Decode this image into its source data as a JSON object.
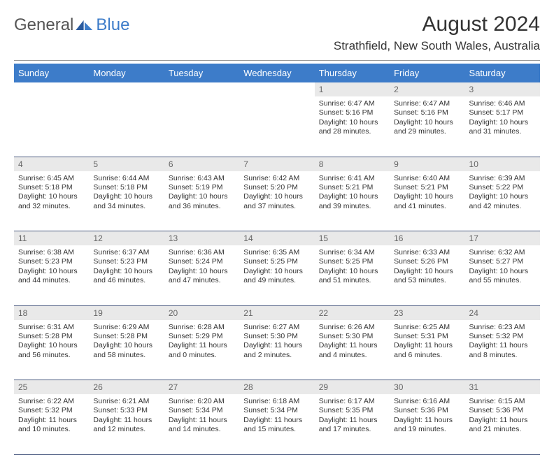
{
  "logo": {
    "text1": "General",
    "text2": "Blue",
    "color1": "#555555",
    "color2": "#3d7cc9"
  },
  "title": "August 2024",
  "subtitle": "Strathfield, New South Wales, Australia",
  "header_bg": "#3d7cc9",
  "daynum_bg": "#e9e9e9",
  "border_color": "#4a5a80",
  "columns": [
    "Sunday",
    "Monday",
    "Tuesday",
    "Wednesday",
    "Thursday",
    "Friday",
    "Saturday"
  ],
  "weeks": [
    {
      "nums": [
        "",
        "",
        "",
        "",
        "1",
        "2",
        "3"
      ],
      "cells": [
        null,
        null,
        null,
        null,
        {
          "sunrise": "6:47 AM",
          "sunset": "5:16 PM",
          "dlh": 10,
          "dlm": 28
        },
        {
          "sunrise": "6:47 AM",
          "sunset": "5:16 PM",
          "dlh": 10,
          "dlm": 29
        },
        {
          "sunrise": "6:46 AM",
          "sunset": "5:17 PM",
          "dlh": 10,
          "dlm": 31
        }
      ]
    },
    {
      "nums": [
        "4",
        "5",
        "6",
        "7",
        "8",
        "9",
        "10"
      ],
      "cells": [
        {
          "sunrise": "6:45 AM",
          "sunset": "5:18 PM",
          "dlh": 10,
          "dlm": 32
        },
        {
          "sunrise": "6:44 AM",
          "sunset": "5:18 PM",
          "dlh": 10,
          "dlm": 34
        },
        {
          "sunrise": "6:43 AM",
          "sunset": "5:19 PM",
          "dlh": 10,
          "dlm": 36
        },
        {
          "sunrise": "6:42 AM",
          "sunset": "5:20 PM",
          "dlh": 10,
          "dlm": 37
        },
        {
          "sunrise": "6:41 AM",
          "sunset": "5:21 PM",
          "dlh": 10,
          "dlm": 39
        },
        {
          "sunrise": "6:40 AM",
          "sunset": "5:21 PM",
          "dlh": 10,
          "dlm": 41
        },
        {
          "sunrise": "6:39 AM",
          "sunset": "5:22 PM",
          "dlh": 10,
          "dlm": 42
        }
      ]
    },
    {
      "nums": [
        "11",
        "12",
        "13",
        "14",
        "15",
        "16",
        "17"
      ],
      "cells": [
        {
          "sunrise": "6:38 AM",
          "sunset": "5:23 PM",
          "dlh": 10,
          "dlm": 44
        },
        {
          "sunrise": "6:37 AM",
          "sunset": "5:23 PM",
          "dlh": 10,
          "dlm": 46
        },
        {
          "sunrise": "6:36 AM",
          "sunset": "5:24 PM",
          "dlh": 10,
          "dlm": 47
        },
        {
          "sunrise": "6:35 AM",
          "sunset": "5:25 PM",
          "dlh": 10,
          "dlm": 49
        },
        {
          "sunrise": "6:34 AM",
          "sunset": "5:25 PM",
          "dlh": 10,
          "dlm": 51
        },
        {
          "sunrise": "6:33 AM",
          "sunset": "5:26 PM",
          "dlh": 10,
          "dlm": 53
        },
        {
          "sunrise": "6:32 AM",
          "sunset": "5:27 PM",
          "dlh": 10,
          "dlm": 55
        }
      ]
    },
    {
      "nums": [
        "18",
        "19",
        "20",
        "21",
        "22",
        "23",
        "24"
      ],
      "cells": [
        {
          "sunrise": "6:31 AM",
          "sunset": "5:28 PM",
          "dlh": 10,
          "dlm": 56
        },
        {
          "sunrise": "6:29 AM",
          "sunset": "5:28 PM",
          "dlh": 10,
          "dlm": 58
        },
        {
          "sunrise": "6:28 AM",
          "sunset": "5:29 PM",
          "dlh": 11,
          "dlm": 0
        },
        {
          "sunrise": "6:27 AM",
          "sunset": "5:30 PM",
          "dlh": 11,
          "dlm": 2
        },
        {
          "sunrise": "6:26 AM",
          "sunset": "5:30 PM",
          "dlh": 11,
          "dlm": 4
        },
        {
          "sunrise": "6:25 AM",
          "sunset": "5:31 PM",
          "dlh": 11,
          "dlm": 6
        },
        {
          "sunrise": "6:23 AM",
          "sunset": "5:32 PM",
          "dlh": 11,
          "dlm": 8
        }
      ]
    },
    {
      "nums": [
        "25",
        "26",
        "27",
        "28",
        "29",
        "30",
        "31"
      ],
      "cells": [
        {
          "sunrise": "6:22 AM",
          "sunset": "5:32 PM",
          "dlh": 11,
          "dlm": 10
        },
        {
          "sunrise": "6:21 AM",
          "sunset": "5:33 PM",
          "dlh": 11,
          "dlm": 12
        },
        {
          "sunrise": "6:20 AM",
          "sunset": "5:34 PM",
          "dlh": 11,
          "dlm": 14
        },
        {
          "sunrise": "6:18 AM",
          "sunset": "5:34 PM",
          "dlh": 11,
          "dlm": 15
        },
        {
          "sunrise": "6:17 AM",
          "sunset": "5:35 PM",
          "dlh": 11,
          "dlm": 17
        },
        {
          "sunrise": "6:16 AM",
          "sunset": "5:36 PM",
          "dlh": 11,
          "dlm": 19
        },
        {
          "sunrise": "6:15 AM",
          "sunset": "5:36 PM",
          "dlh": 11,
          "dlm": 21
        }
      ]
    }
  ]
}
